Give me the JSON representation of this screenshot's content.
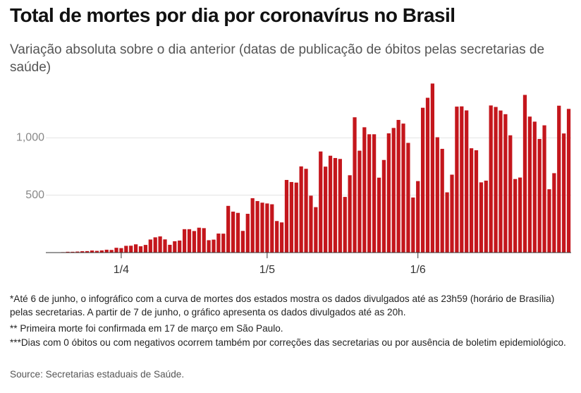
{
  "chart_data": {
    "type": "bar",
    "title": "Total de mortes por dia por coronavírus no Brasil",
    "subtitle": "Variação absoluta sobre o dia anterior (datas de publicação de óbitos pelas secretarias de saúde)",
    "notes": [
      "*Até 6 de junho, o infográfico com a curva de mortes dos estados mostra os dados divulgados até as 23h59 (horário de Brasília) pelas secretarias. A partir de 7 de junho, o gráfico apresenta os dados divulgados até as 20h.",
      "** Primeira morte foi confirmada em 17 de março em São Paulo.",
      "***Dias com 0 óbitos ou com negativos ocorrem também por correções das secretarias ou por ausência de boletim epidemiológico."
    ],
    "source": "Source: Secretarias estaduais de Saúde.",
    "categories": [
      null,
      null,
      null,
      null,
      null,
      null,
      null,
      null,
      null,
      null,
      null,
      null,
      null,
      null,
      null,
      "1/4",
      null,
      null,
      null,
      null,
      null,
      null,
      null,
      null,
      null,
      null,
      null,
      null,
      null,
      null,
      null,
      null,
      null,
      null,
      null,
      null,
      null,
      null,
      null,
      null,
      null,
      null,
      null,
      null,
      null,
      "1/5",
      null,
      null,
      null,
      null,
      null,
      null,
      null,
      null,
      null,
      null,
      null,
      null,
      null,
      null,
      null,
      null,
      null,
      null,
      null,
      null,
      null,
      null,
      null,
      null,
      null,
      null,
      null,
      null,
      null,
      null,
      "1/6",
      null,
      null,
      null,
      null,
      null,
      null,
      null,
      null,
      null,
      null,
      null,
      null,
      null,
      null,
      null,
      null,
      null,
      null,
      null,
      null,
      null,
      null,
      null,
      null,
      null,
      null,
      null,
      null,
      null,
      null,
      null
    ],
    "values": [
      1,
      3,
      3,
      4,
      7,
      7,
      9,
      12,
      13,
      18,
      15,
      19,
      25,
      23,
      42,
      39,
      59,
      60,
      72,
      55,
      67,
      114,
      133,
      141,
      115,
      68,
      99,
      105,
      204,
      204,
      188,
      217,
      213,
      108,
      113,
      166,
      165,
      407,
      357,
      346,
      189,
      338,
      474,
      449,
      435,
      428,
      421,
      275,
      263,
      633,
      615,
      610,
      751,
      730,
      496,
      396,
      881,
      749,
      844,
      824,
      816,
      485,
      674,
      1179,
      888,
      1092,
      1031,
      1031,
      653,
      807,
      1039,
      1086,
      1156,
      1124,
      956,
      480,
      623,
      1262,
      1349,
      1473,
      1005,
      904,
      525,
      679,
      1272,
      1274,
      1239,
      909,
      892,
      612,
      627,
      1282,
      1269,
      1238,
      1206,
      1022,
      641,
      654,
      1374,
      1185,
      1141,
      990,
      1109,
      552,
      692,
      1280,
      1038,
      1252
    ],
    "color": "#c4161c",
    "ylim": [
      0,
      1500
    ],
    "yticks": [
      500,
      {
        "value": 1000,
        "label": "1,000"
      }
    ],
    "grid": true
  }
}
